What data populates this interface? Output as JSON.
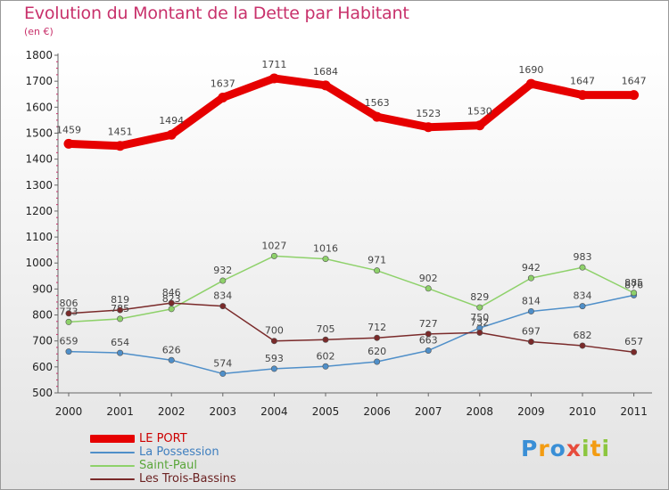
{
  "title": "Evolution du Montant de la Dette par Habitant",
  "unit": "(en €)",
  "logo_text": "Proxiti",
  "logo_letters": [
    {
      "ch": "P",
      "color": "#3a8fd6"
    },
    {
      "ch": "r",
      "color": "#f39c12"
    },
    {
      "ch": "o",
      "color": "#3a8fd6"
    },
    {
      "ch": "x",
      "color": "#e74c3c"
    },
    {
      "ch": "i",
      "color": "#8cc63f"
    },
    {
      "ch": "t",
      "color": "#f39c12"
    },
    {
      "ch": "i",
      "color": "#8cc63f"
    }
  ],
  "chart_data": {
    "type": "line",
    "title": "Evolution du Montant de la Dette par Habitant",
    "subtitle": "(en €)",
    "xlabel": "",
    "ylabel": "",
    "categories": [
      "2000",
      "2001",
      "2002",
      "2003",
      "2004",
      "2005",
      "2006",
      "2007",
      "2008",
      "2009",
      "2010",
      "2011"
    ],
    "ylim": [
      500,
      1800
    ],
    "yticks": [
      500,
      600,
      700,
      800,
      900,
      1000,
      1100,
      1200,
      1300,
      1400,
      1500,
      1600,
      1700,
      1800
    ],
    "grid": false,
    "legend_position": "bottom-left",
    "series": [
      {
        "name": "LE PORT",
        "color": "#e60000",
        "values": [
          1459,
          1451,
          1494,
          1637,
          1711,
          1684,
          1563,
          1523,
          1530,
          1690,
          1647,
          1647
        ]
      },
      {
        "name": "La Possession",
        "color": "#4f8fc9",
        "values": [
          659,
          654,
          626,
          574,
          593,
          602,
          620,
          663,
          750,
          814,
          834,
          876
        ]
      },
      {
        "name": "Saint-Paul",
        "color": "#8ed16a",
        "values": [
          773,
          785,
          823,
          932,
          1027,
          1016,
          971,
          902,
          829,
          942,
          983,
          885
        ]
      },
      {
        "name": "Les Trois-Bassins",
        "color": "#7a2a2a",
        "values": [
          806,
          819,
          846,
          834,
          700,
          705,
          712,
          727,
          732,
          697,
          682,
          657
        ]
      }
    ]
  }
}
